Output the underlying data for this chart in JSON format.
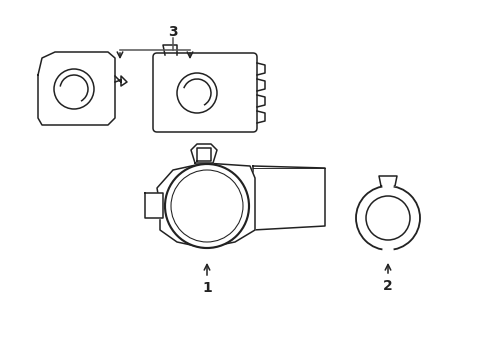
{
  "bg_color": "#ffffff",
  "line_color": "#222222",
  "line_width": 1.1,
  "label1": "1",
  "label2": "2",
  "label3": "3",
  "fig_width": 4.9,
  "fig_height": 3.6,
  "dpi": 100
}
